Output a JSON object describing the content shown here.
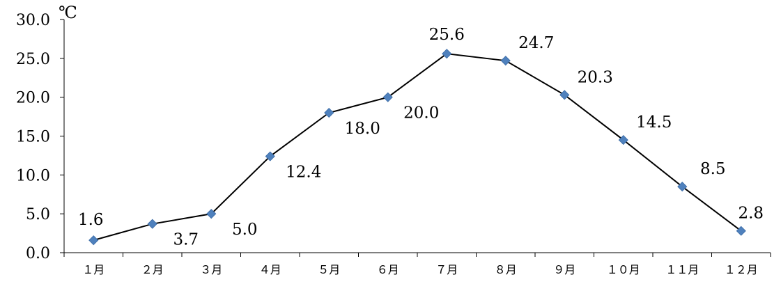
{
  "chart_data": {
    "type": "line",
    "categories": [
      "１月",
      "２月",
      "３月",
      "４月",
      "５月",
      "６月",
      "７月",
      "８月",
      "９月",
      "１０月",
      "１１月",
      "１２月"
    ],
    "values": [
      1.6,
      3.7,
      5.0,
      12.4,
      18.0,
      20.0,
      25.6,
      24.7,
      20.3,
      14.5,
      8.5,
      2.8
    ],
    "value_labels": [
      "1.6",
      "3.7",
      "5.0",
      "12.4",
      "18.0",
      "20.0",
      "25.6",
      "24.7",
      "20.3",
      "14.5",
      "8.5",
      "2.8"
    ],
    "y_ticks": [
      "0.0",
      "5.0",
      "10.0",
      "15.0",
      "20.0",
      "25.0",
      "30.0"
    ],
    "ylim": [
      0,
      30
    ],
    "y_unit": "℃",
    "title": "",
    "xlabel": "",
    "ylabel": "",
    "grid": false,
    "legend": "none",
    "line_color": "#000000",
    "marker_color": "#4F81BD",
    "marker_shape": "diamond"
  }
}
